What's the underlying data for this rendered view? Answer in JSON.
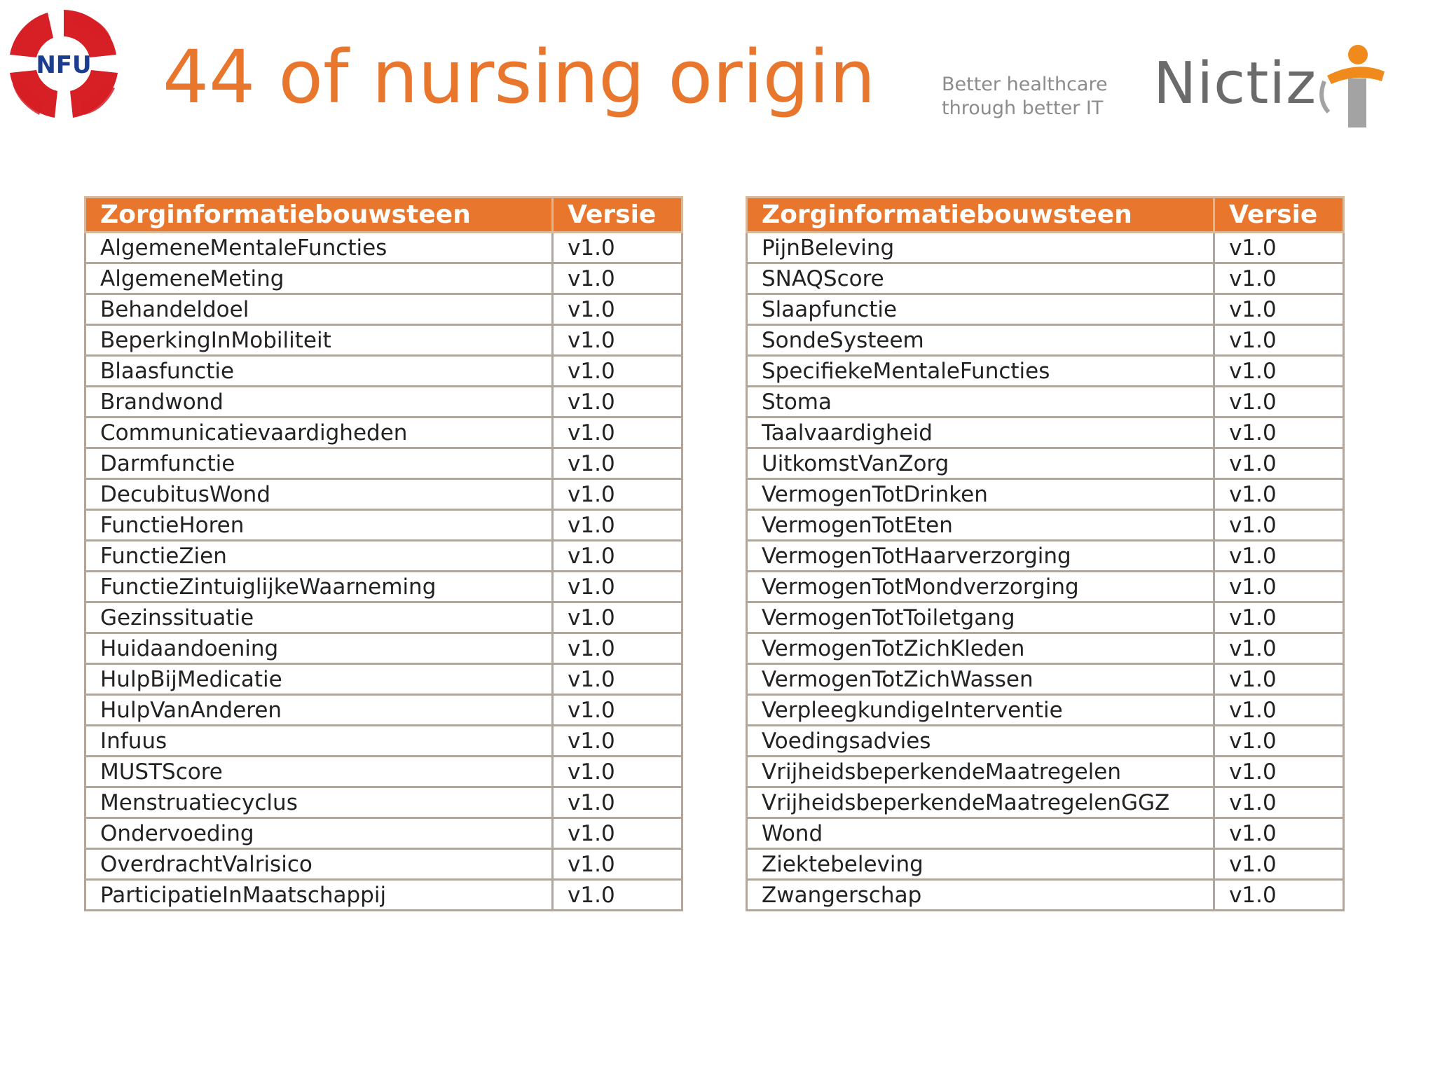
{
  "title": "44 of nursing origin",
  "logos": {
    "nfu": "NFU",
    "nictiz": "Nictiz",
    "tagline_line1": "Better healthcare",
    "tagline_line2": "through better IT"
  },
  "colors": {
    "accent": "#e8762d",
    "nfu_red": "#d71f26",
    "nfu_blue": "#1a3d8f",
    "border": "#b0a69c",
    "grey_text": "#6b6b6b"
  },
  "tables": [
    {
      "headers": [
        "Zorginformatiebouwsteen",
        "Versie"
      ],
      "rows": [
        [
          "AlgemeneMentaleFuncties",
          "v1.0"
        ],
        [
          "AlgemeneMeting",
          "v1.0"
        ],
        [
          "Behandeldoel",
          "v1.0"
        ],
        [
          "BeperkingInMobiliteit",
          "v1.0"
        ],
        [
          "Blaasfunctie",
          "v1.0"
        ],
        [
          "Brandwond",
          "v1.0"
        ],
        [
          "Communicatievaardigheden",
          "v1.0"
        ],
        [
          "Darmfunctie",
          "v1.0"
        ],
        [
          "DecubitusWond",
          "v1.0"
        ],
        [
          "FunctieHoren",
          "v1.0"
        ],
        [
          "FunctieZien",
          "v1.0"
        ],
        [
          "FunctieZintuiglijkeWaarneming",
          "v1.0"
        ],
        [
          "Gezinssituatie",
          "v1.0"
        ],
        [
          "Huidaandoening",
          "v1.0"
        ],
        [
          "HulpBijMedicatie",
          "v1.0"
        ],
        [
          "HulpVanAnderen",
          "v1.0"
        ],
        [
          "Infuus",
          "v1.0"
        ],
        [
          "MUSTScore",
          "v1.0"
        ],
        [
          "Menstruatiecyclus",
          "v1.0"
        ],
        [
          "Ondervoeding",
          "v1.0"
        ],
        [
          "OverdrachtValrisico",
          "v1.0"
        ],
        [
          "ParticipatieInMaatschappij",
          "v1.0"
        ]
      ]
    },
    {
      "headers": [
        "Zorginformatiebouwsteen",
        "Versie"
      ],
      "rows": [
        [
          "PijnBeleving",
          "v1.0"
        ],
        [
          "SNAQScore",
          "v1.0"
        ],
        [
          "Slaapfunctie",
          "v1.0"
        ],
        [
          "SondeSysteem",
          "v1.0"
        ],
        [
          "SpecifiekeMentaleFuncties",
          "v1.0"
        ],
        [
          "Stoma",
          "v1.0"
        ],
        [
          "Taalvaardigheid",
          "v1.0"
        ],
        [
          "UitkomstVanZorg",
          "v1.0"
        ],
        [
          "VermogenTotDrinken",
          "v1.0"
        ],
        [
          "VermogenTotEten",
          "v1.0"
        ],
        [
          "VermogenTotHaarverzorging",
          "v1.0"
        ],
        [
          "VermogenTotMondverzorging",
          "v1.0"
        ],
        [
          "VermogenTotToiletgang",
          "v1.0"
        ],
        [
          "VermogenTotZichKleden",
          "v1.0"
        ],
        [
          "VermogenTotZichWassen",
          "v1.0"
        ],
        [
          "VerpleegkundigeInterventie",
          "v1.0"
        ],
        [
          "Voedingsadvies",
          "v1.0"
        ],
        [
          "VrijheidsbeperkendeMaatregelen",
          "v1.0"
        ],
        [
          "VrijheidsbeperkendeMaatregelenGGZ",
          "v1.0"
        ],
        [
          "Wond",
          "v1.0"
        ],
        [
          "Ziektebeleving",
          "v1.0"
        ],
        [
          "Zwangerschap",
          "v1.0"
        ]
      ]
    }
  ]
}
